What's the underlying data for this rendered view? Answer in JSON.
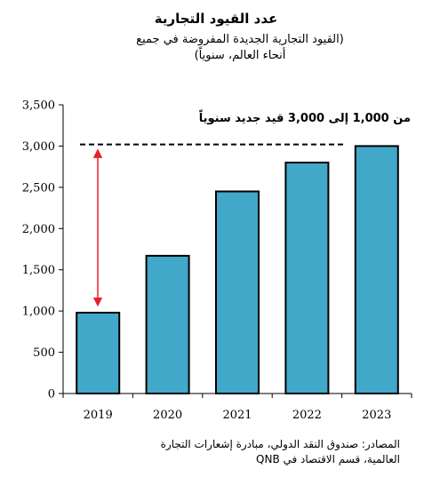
{
  "chart_data": {
    "type": "bar",
    "title": "عدد القيود التجارية",
    "subtitle": "(القيود التجارية الجديدة المفروضة في جميع أنحاء العالم، سنوياً)",
    "categories": [
      "2019",
      "2020",
      "2021",
      "2022",
      "2023"
    ],
    "values": [
      980,
      1670,
      2450,
      2800,
      3000
    ],
    "ylim": [
      0,
      3500
    ],
    "yticks": [
      "0",
      "500",
      "1,000",
      "1,500",
      "2,000",
      "2,500",
      "3,000",
      "3,500"
    ],
    "grid": false,
    "annotation": "من 1,000 إلى 3,000 قيد جديد سنوياً",
    "reference_line_value": 3020,
    "colors": {
      "bar": "#41a8c9",
      "bar_edge": "#000000",
      "arrow": "#e8202a"
    }
  },
  "source": "المصادر: صندوق النقد الدولي، مبادرة إشعارات التجارة العالمية، قسم الاقتصاد في QNB"
}
